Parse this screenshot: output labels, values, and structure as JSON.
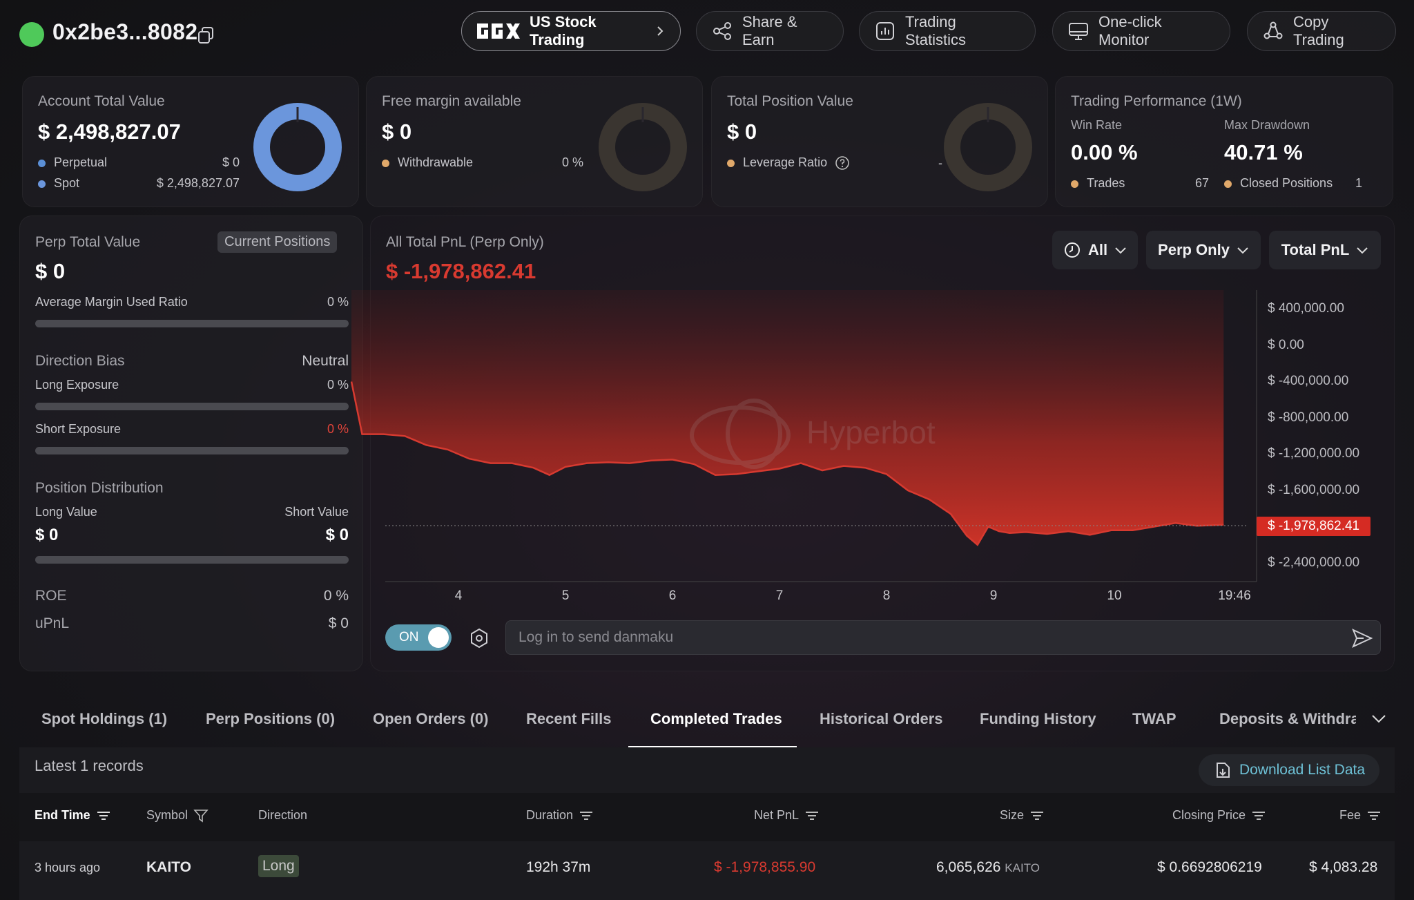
{
  "header": {
    "wallet_address": "0x2be3...8082",
    "buttons": [
      {
        "label": "US Stock Trading",
        "icon": "bbx-logo-icon"
      },
      {
        "label": "Share & Earn",
        "icon": "share-icon"
      },
      {
        "label": "Trading Statistics",
        "icon": "statistics-icon"
      },
      {
        "label": "One-click Monitor",
        "icon": "monitor-icon"
      },
      {
        "label": "Copy Trading",
        "icon": "copy-trading-icon"
      }
    ]
  },
  "account": {
    "title": "Account Total Value",
    "value": "$ 2,498,827.07",
    "perpetual_label": "Perpetual",
    "perpetual_value": "$ 0",
    "spot_label": "Spot",
    "spot_value": "$ 2,498,827.07",
    "spot_share": 1.0,
    "color_perp": "#5b8fd6",
    "color_spot": "#6b96dc"
  },
  "free_margin": {
    "title": "Free margin available",
    "value": "$ 0",
    "withdrawable_label": "Withdrawable",
    "withdrawable_value": "0 %"
  },
  "position": {
    "title": "Total Position Value",
    "value": "$ 0",
    "leverage_label": "Leverage Ratio",
    "leverage_value": "-"
  },
  "performance": {
    "title": "Trading Performance (1W)",
    "win_rate_label": "Win Rate",
    "win_rate": "0.00 %",
    "max_drawdown_label": "Max Drawdown",
    "max_drawdown": "40.71 %",
    "trades_label": "Trades",
    "trades": "67",
    "closed_label": "Closed Positions",
    "closed": "1"
  },
  "perp": {
    "title": "Perp Total Value",
    "tag": "Current Positions",
    "value": "$ 0",
    "avg_margin_label": "Average Margin Used Ratio",
    "avg_margin_value": "0 %",
    "direction_label": "Direction Bias",
    "direction_value": "Neutral",
    "long_exposure_label": "Long Exposure",
    "long_exposure_value": "0 %",
    "short_exposure_label": "Short Exposure",
    "short_exposure_value": "0 %",
    "distribution_label": "Position Distribution",
    "long_value_label": "Long Value",
    "short_value_label": "Short Value",
    "long_value": "$ 0",
    "short_value": "$ 0",
    "roe_label": "ROE",
    "roe_value": "0 %",
    "upnl_label": "uPnL",
    "upnl_value": "$ 0"
  },
  "pnl": {
    "title": "All Total PnL (Perp Only)",
    "value": "$ -1,978,862.41",
    "filters": [
      "All",
      "Perp Only",
      "Total PnL"
    ],
    "watermark": "Hyperbot",
    "toggle_label": "ON",
    "danmaku_placeholder": "Log in to send danmaku",
    "current_label": "$ -1,978,862.41"
  },
  "chart_data": {
    "type": "area",
    "title": "All Total PnL (Perp Only)",
    "x_ticks": [
      "4",
      "5",
      "6",
      "7",
      "8",
      "9",
      "10",
      "19:46"
    ],
    "y_ticks": [
      "$ 400,000.00",
      "$ 0.00",
      "$ -400,000.00",
      "$ -800,000.00",
      "$ -1,200,000.00",
      "$ -1,600,000.00",
      "$ -2,400,000.00"
    ],
    "ylim": [
      -2400000,
      400000
    ],
    "color": "#d73a30",
    "series": [
      {
        "x": [
          3.0,
          3.1,
          3.3,
          3.5,
          3.7,
          3.9,
          4.1,
          4.3,
          4.5,
          4.7,
          4.85,
          5.0,
          5.2,
          5.4,
          5.6,
          5.8,
          6.0,
          6.2,
          6.4,
          6.6,
          6.8,
          7.0,
          7.2,
          7.4,
          7.6,
          7.8,
          8.0,
          8.2,
          8.4,
          8.6,
          8.75,
          8.85,
          8.95,
          9.05,
          9.15,
          9.3,
          9.5,
          9.7,
          9.9,
          10.1,
          10.3,
          10.5,
          10.7,
          10.9,
          11.15
        ],
        "y": [
          -400000,
          -980000,
          -980000,
          -1000000,
          -1100000,
          -1150000,
          -1250000,
          -1300000,
          -1300000,
          -1350000,
          -1430000,
          -1340000,
          -1300000,
          -1290000,
          -1300000,
          -1270000,
          -1260000,
          -1310000,
          -1430000,
          -1420000,
          -1390000,
          -1360000,
          -1300000,
          -1380000,
          -1330000,
          -1350000,
          -1420000,
          -1600000,
          -1700000,
          -1860000,
          -2100000,
          -2200000,
          -2000000,
          -2050000,
          -2070000,
          -2060000,
          -2080000,
          -2050000,
          -2090000,
          -2040000,
          -2040000,
          -2000000,
          -1960000,
          -1990000,
          -1978862
        ]
      }
    ]
  },
  "tabs": [
    "Spot Holdings (1)",
    "Perp Positions (0)",
    "Open Orders (0)",
    "Recent Fills",
    "Completed Trades",
    "Historical Orders",
    "Funding History",
    "TWAP",
    "Deposits & Withdraw"
  ],
  "table": {
    "records_label": "Latest 1 records",
    "download_label": "Download List Data",
    "columns": [
      "End Time",
      "Symbol",
      "Direction",
      "Duration",
      "Net PnL",
      "Size",
      "Closing Price",
      "Fee"
    ],
    "rows": [
      {
        "end_time": "3 hours ago",
        "symbol": "KAITO",
        "direction": "Long",
        "duration": "192h 37m",
        "net_pnl": "$ -1,978,855.90",
        "size": "6,065,626",
        "size_unit": "KAITO",
        "closing_price": "$ 0.6692806219",
        "fee": "$ 4,083.28"
      }
    ]
  }
}
